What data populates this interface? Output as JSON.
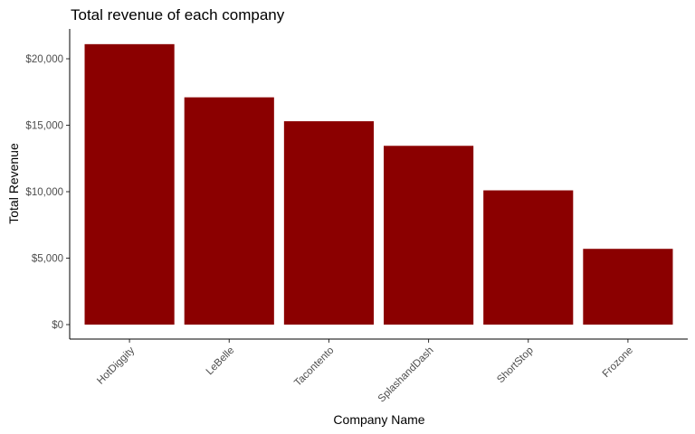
{
  "chart_data": {
    "type": "bar",
    "title": "Total revenue of each company",
    "xlabel": "Company Name",
    "ylabel": "Total Revenue",
    "categories": [
      "HotDiggity",
      "LeBelle",
      "Tacontento",
      "SplashandDash",
      "ShortStop",
      "Frozone"
    ],
    "values": [
      21100,
      17100,
      15300,
      13450,
      10100,
      5700
    ],
    "ylim": [
      0,
      22000
    ],
    "yticks": [
      0,
      5000,
      10000,
      15000,
      20000
    ],
    "ytick_labels": [
      "$0",
      "$5,000",
      "$10,000",
      "$15,000",
      "$20,000"
    ],
    "bar_color": "#8b0000",
    "grid": false,
    "legend": "none"
  }
}
